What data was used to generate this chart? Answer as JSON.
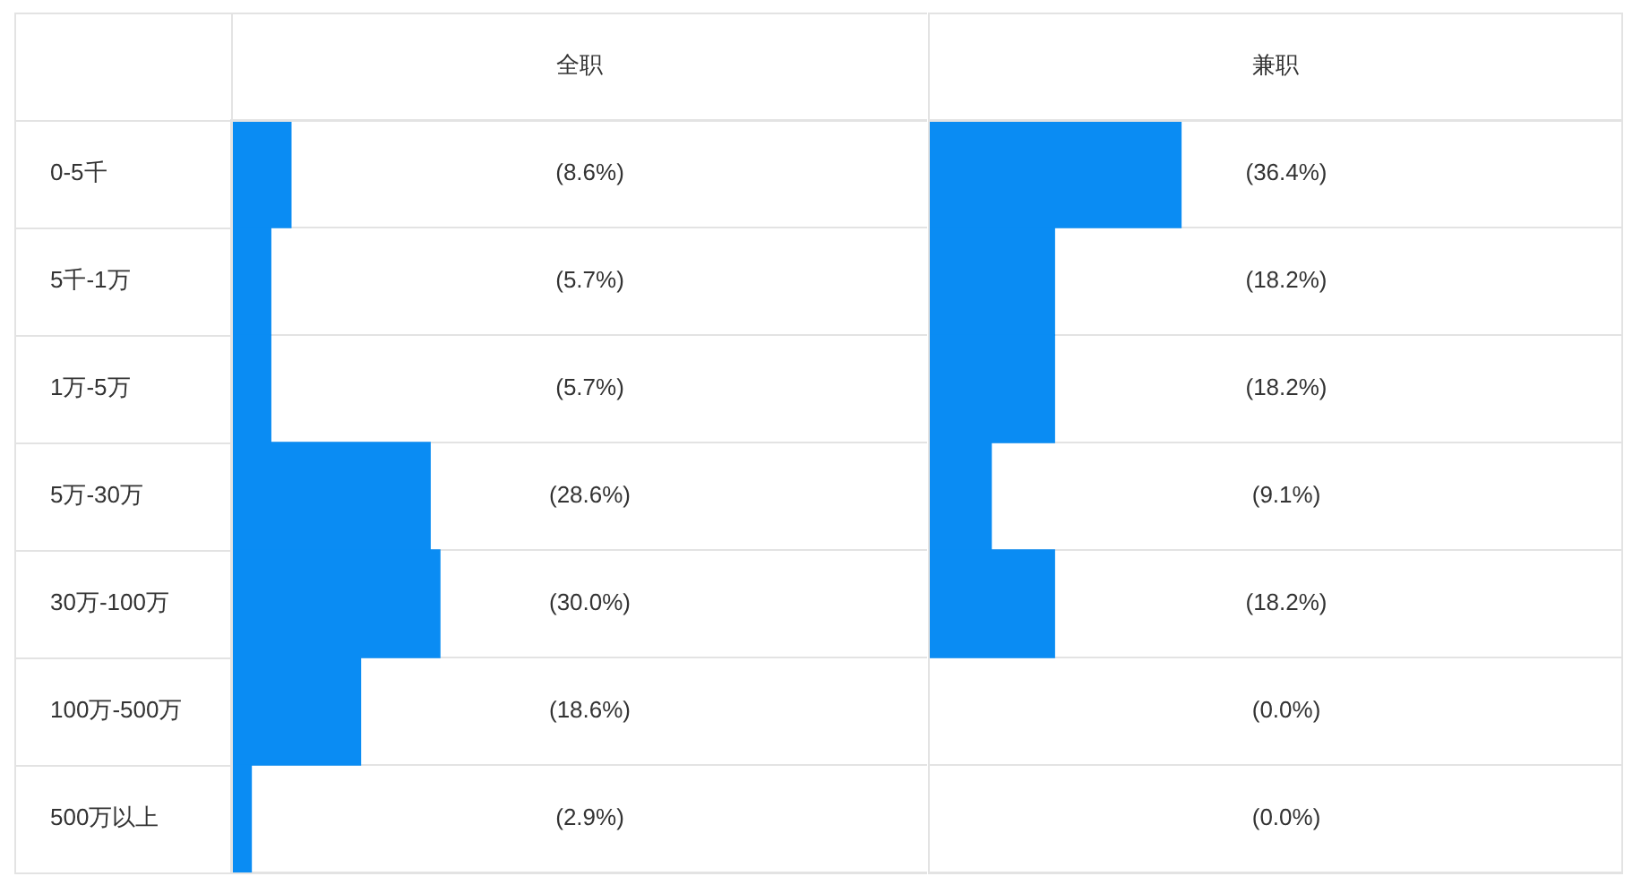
{
  "chart_data": [
    {
      "type": "bar",
      "title": "全职",
      "categories": [
        "0-5千",
        "5千-1万",
        "1万-5万",
        "5万-30万",
        "30万-100万",
        "100万-500万",
        "500万以上"
      ],
      "values": [
        8.6,
        5.7,
        5.7,
        28.6,
        30.0,
        18.6,
        2.9
      ],
      "value_labels": [
        "(8.6%)",
        "(5.7%)",
        "(5.7%)",
        "(28.6%)",
        "(30.0%)",
        "(18.6%)",
        "(2.9%)"
      ],
      "color": "#0a8cf3",
      "orientation": "horizontal",
      "xlim": [
        0,
        100
      ],
      "grid": "y",
      "tick_labels": "y"
    },
    {
      "type": "bar",
      "title": "兼职",
      "categories": [
        null,
        null,
        null,
        null,
        null,
        null,
        null
      ],
      "values": [
        36.4,
        18.2,
        18.2,
        9.1,
        18.2,
        0.0,
        0.0
      ],
      "value_labels": [
        "(36.4%)",
        "(18.2%)",
        "(18.2%)",
        "(9.1%)",
        "(18.2%)",
        "(0.0%)",
        "(0.0%)"
      ],
      "color": "#0a8cf3",
      "orientation": "horizontal",
      "xlim": [
        0,
        100
      ],
      "grid": "y",
      "tick_labels": false
    }
  ]
}
